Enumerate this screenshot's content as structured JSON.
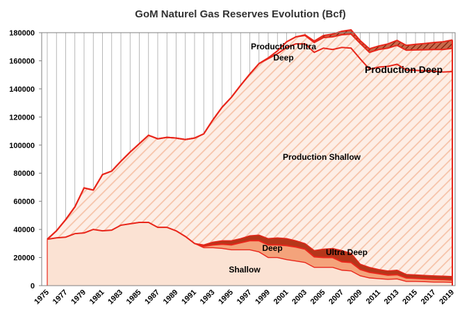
{
  "chart_data": {
    "type": "area",
    "title": "GoM Naturel Gas Reserves Evolution (Bcf)",
    "xlabel": "",
    "ylabel": "",
    "ylim": [
      0,
      180000
    ],
    "yticks": [
      0,
      20000,
      40000,
      60000,
      80000,
      100000,
      120000,
      140000,
      160000,
      180000
    ],
    "xlim": [
      1975,
      2019
    ],
    "xticks": [
      1975,
      1977,
      1979,
      1981,
      1983,
      1985,
      1987,
      1989,
      1991,
      1993,
      1995,
      1997,
      1999,
      2001,
      2003,
      2005,
      2007,
      2009,
      2011,
      2013,
      2015,
      2017,
      2019
    ],
    "grid": "vertical",
    "stacked": true,
    "x": [
      1975,
      1976,
      1977,
      1978,
      1979,
      1980,
      1981,
      1982,
      1983,
      1984,
      1985,
      1986,
      1987,
      1988,
      1989,
      1990,
      1991,
      1992,
      1993,
      1994,
      1995,
      1996,
      1997,
      1998,
      1999,
      2000,
      2001,
      2002,
      2003,
      2004,
      2005,
      2006,
      2007,
      2008,
      2009,
      2010,
      2011,
      2012,
      2013,
      2014,
      2015,
      2016,
      2017,
      2018,
      2019
    ],
    "series": [
      {
        "name": "Shallow",
        "color": "#fbe3d5",
        "values": [
          33000,
          34000,
          34500,
          37000,
          37500,
          40000,
          39000,
          39500,
          43000,
          44000,
          45000,
          45000,
          41500,
          41500,
          39000,
          35000,
          30000,
          27000,
          27000,
          26500,
          25500,
          25500,
          25500,
          24000,
          20000,
          20000,
          18500,
          17500,
          16500,
          13000,
          13000,
          13000,
          11000,
          10500,
          7000,
          5500,
          5000,
          4500,
          4800,
          3000,
          3000,
          2800,
          2500,
          2500,
          2300
        ]
      },
      {
        "name": "Deep",
        "color": "#f6b08e",
        "values": [
          0,
          0,
          0,
          0,
          0,
          0,
          0,
          0,
          0,
          0,
          0,
          0,
          0,
          0,
          0,
          0,
          0,
          1000,
          2000,
          3000,
          3500,
          5000,
          6500,
          8000,
          9000,
          9000,
          10000,
          10000,
          9500,
          7500,
          7000,
          7000,
          6000,
          6000,
          4500,
          4000,
          3500,
          3000,
          3000,
          2500,
          2200,
          2000,
          2000,
          1800,
          1700
        ]
      },
      {
        "name": "Ultra Deep",
        "color": "#a62a10",
        "values": [
          0,
          0,
          0,
          0,
          0,
          0,
          0,
          0,
          0,
          0,
          0,
          0,
          0,
          0,
          0,
          0,
          0,
          1000,
          2000,
          2500,
          3000,
          3000,
          3500,
          4000,
          4500,
          5000,
          5000,
          4500,
          4000,
          4500,
          6000,
          6500,
          8000,
          6500,
          3800,
          3500,
          3000,
          3000,
          3200,
          2500,
          2500,
          2500,
          2500,
          2500,
          2500
        ]
      },
      {
        "name": "Production Shallow",
        "color": "#f7c1a8",
        "values": [
          0,
          5000,
          12500,
          19000,
          32000,
          28000,
          40000,
          42000,
          45500,
          51000,
          56000,
          62000,
          63000,
          64000,
          66000,
          69000,
          75000,
          79000,
          87000,
          95000,
          102000,
          109000,
          115000,
          122000,
          128000,
          131000,
          136000,
          140000,
          142000,
          141000,
          143000,
          141500,
          144500,
          146000,
          146000,
          141000,
          144000,
          145500,
          146500,
          145500,
          145500,
          145500,
          145500,
          145200,
          145800
        ]
      },
      {
        "name": "Production Deep",
        "color": "#f7c1a8",
        "values": [
          0,
          0,
          0,
          0,
          0,
          0,
          0,
          0,
          0,
          0,
          0,
          0,
          0,
          0,
          0,
          0,
          0,
          0,
          0,
          0,
          0,
          0,
          0,
          0,
          500,
          2000,
          4000,
          5000,
          6000,
          7000,
          7500,
          9000,
          9000,
          10000,
          11000,
          12000,
          12500,
          13000,
          13500,
          14000,
          14500,
          15000,
          15500,
          16000,
          16500
        ]
      },
      {
        "name": "Production Ultra Deep",
        "color": "#a62a10",
        "values": [
          0,
          0,
          0,
          0,
          0,
          0,
          0,
          0,
          0,
          0,
          0,
          0,
          0,
          0,
          0,
          0,
          0,
          0,
          0,
          0,
          0,
          0,
          0,
          0,
          0,
          0,
          0,
          0,
          500,
          1000,
          1500,
          2000,
          2500,
          3000,
          2000,
          2500,
          2500,
          3000,
          3500,
          3500,
          4000,
          4500,
          5000,
          5500,
          6000
        ]
      }
    ],
    "annotations": [
      {
        "text": "Production Ultra",
        "series": "Production Ultra Deep"
      },
      {
        "text": "Deep",
        "series": "Production Ultra Deep"
      },
      {
        "text": "Production Deep",
        "series": "Production Deep"
      },
      {
        "text": "Production Shallow",
        "series": "Production Shallow"
      },
      {
        "text": "Deep",
        "series": "Deep"
      },
      {
        "text": "Ultra Deep",
        "series": "Ultra Deep"
      },
      {
        "text": "Shallow",
        "series": "Shallow"
      }
    ]
  }
}
